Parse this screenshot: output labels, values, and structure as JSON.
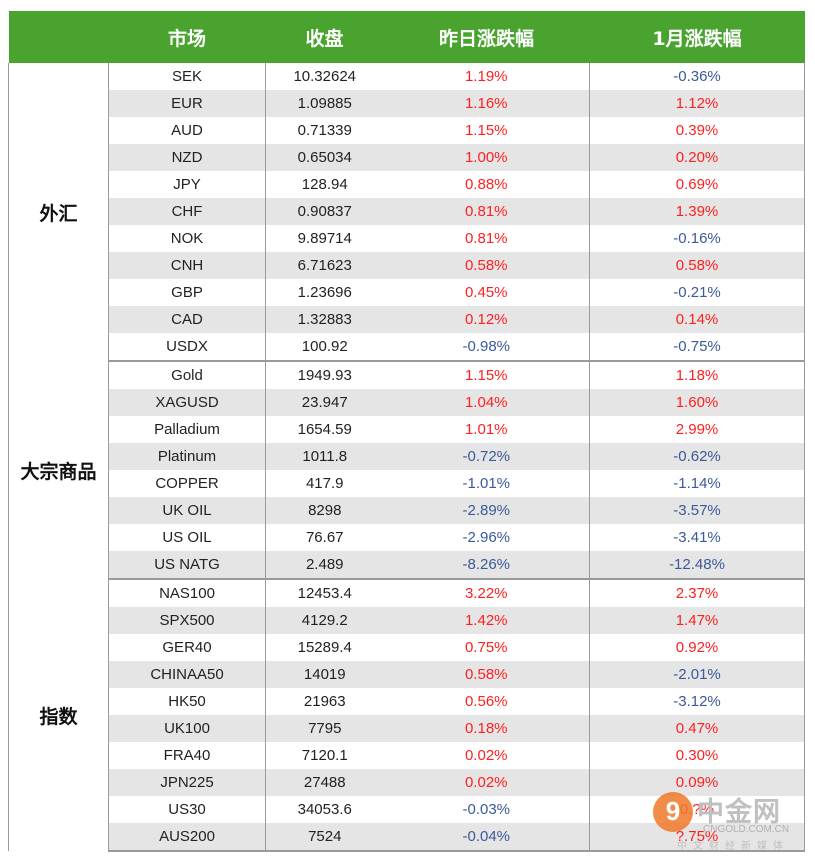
{
  "header": {
    "market": "市场",
    "close": "收盘",
    "daily": "昨日涨跌幅",
    "monthly": "1月涨跌幅"
  },
  "sections": [
    {
      "name": "外汇",
      "rows": [
        {
          "market": "SEK",
          "close": "10.32624",
          "daily": "1.19%",
          "monthly": "-0.36%"
        },
        {
          "market": "EUR",
          "close": "1.09885",
          "daily": "1.16%",
          "monthly": "1.12%"
        },
        {
          "market": "AUD",
          "close": "0.71339",
          "daily": "1.15%",
          "monthly": "0.39%"
        },
        {
          "market": "NZD",
          "close": "0.65034",
          "daily": "1.00%",
          "monthly": "0.20%"
        },
        {
          "market": "JPY",
          "close": "128.94",
          "daily": "0.88%",
          "monthly": "0.69%"
        },
        {
          "market": "CHF",
          "close": "0.90837",
          "daily": "0.81%",
          "monthly": "1.39%"
        },
        {
          "market": "NOK",
          "close": "9.89714",
          "daily": "0.81%",
          "monthly": "-0.16%"
        },
        {
          "market": "CNH",
          "close": "6.71623",
          "daily": "0.58%",
          "monthly": "0.58%"
        },
        {
          "market": "GBP",
          "close": "1.23696",
          "daily": "0.45%",
          "monthly": "-0.21%"
        },
        {
          "market": "CAD",
          "close": "1.32883",
          "daily": "0.12%",
          "monthly": "0.14%"
        },
        {
          "market": "USDX",
          "close": "100.92",
          "daily": "-0.98%",
          "monthly": "-0.75%"
        }
      ]
    },
    {
      "name": "大宗商品",
      "rows": [
        {
          "market": "Gold",
          "close": "1949.93",
          "daily": "1.15%",
          "monthly": "1.18%"
        },
        {
          "market": "XAGUSD",
          "close": "23.947",
          "daily": "1.04%",
          "monthly": "1.60%"
        },
        {
          "market": "Palladium",
          "close": "1654.59",
          "daily": "1.01%",
          "monthly": "2.99%"
        },
        {
          "market": "Platinum",
          "close": "1011.8",
          "daily": "-0.72%",
          "monthly": "-0.62%"
        },
        {
          "market": "COPPER",
          "close": "417.9",
          "daily": "-1.01%",
          "monthly": "-1.14%"
        },
        {
          "market": "UK OIL",
          "close": "8298",
          "daily": "-2.89%",
          "monthly": "-3.57%"
        },
        {
          "market": "US OIL",
          "close": "76.67",
          "daily": "-2.96%",
          "monthly": "-3.41%"
        },
        {
          "market": "US NATG",
          "close": "2.489",
          "daily": "-8.26%",
          "monthly": "-12.48%"
        }
      ]
    },
    {
      "name": "指数",
      "rows": [
        {
          "market": "NAS100",
          "close": "12453.4",
          "daily": "3.22%",
          "monthly": "2.37%"
        },
        {
          "market": "SPX500",
          "close": "4129.2",
          "daily": "1.42%",
          "monthly": "1.47%"
        },
        {
          "market": "GER40",
          "close": "15289.4",
          "daily": "0.75%",
          "monthly": "0.92%"
        },
        {
          "market": "CHINAA50",
          "close": "14019",
          "daily": "0.58%",
          "monthly": "-2.01%"
        },
        {
          "market": "HK50",
          "close": "21963",
          "daily": "0.56%",
          "monthly": "-3.12%"
        },
        {
          "market": "UK100",
          "close": "7795",
          "daily": "0.18%",
          "monthly": "0.47%"
        },
        {
          "market": "FRA40",
          "close": "7120.1",
          "daily": "0.02%",
          "monthly": "0.30%"
        },
        {
          "market": "JPN225",
          "close": "27488",
          "daily": "0.02%",
          "monthly": "0.09%"
        },
        {
          "market": "US30",
          "close": "34053.6",
          "daily": "-0.03%",
          "monthly": "0.?%"
        },
        {
          "market": "AUS200",
          "close": "7524",
          "daily": "-0.04%",
          "monthly": "?.75%"
        }
      ]
    }
  ],
  "colors": {
    "header_bg": "#4aa32f",
    "positive": "#ff2020",
    "negative": "#3a5a9a",
    "stripe": "#e5e5e5"
  },
  "watermark": {
    "glyph": "9",
    "name": "中金网",
    "domain": "CNGOLD.COM.CN",
    "subtitle": "中文财经新媒体"
  }
}
